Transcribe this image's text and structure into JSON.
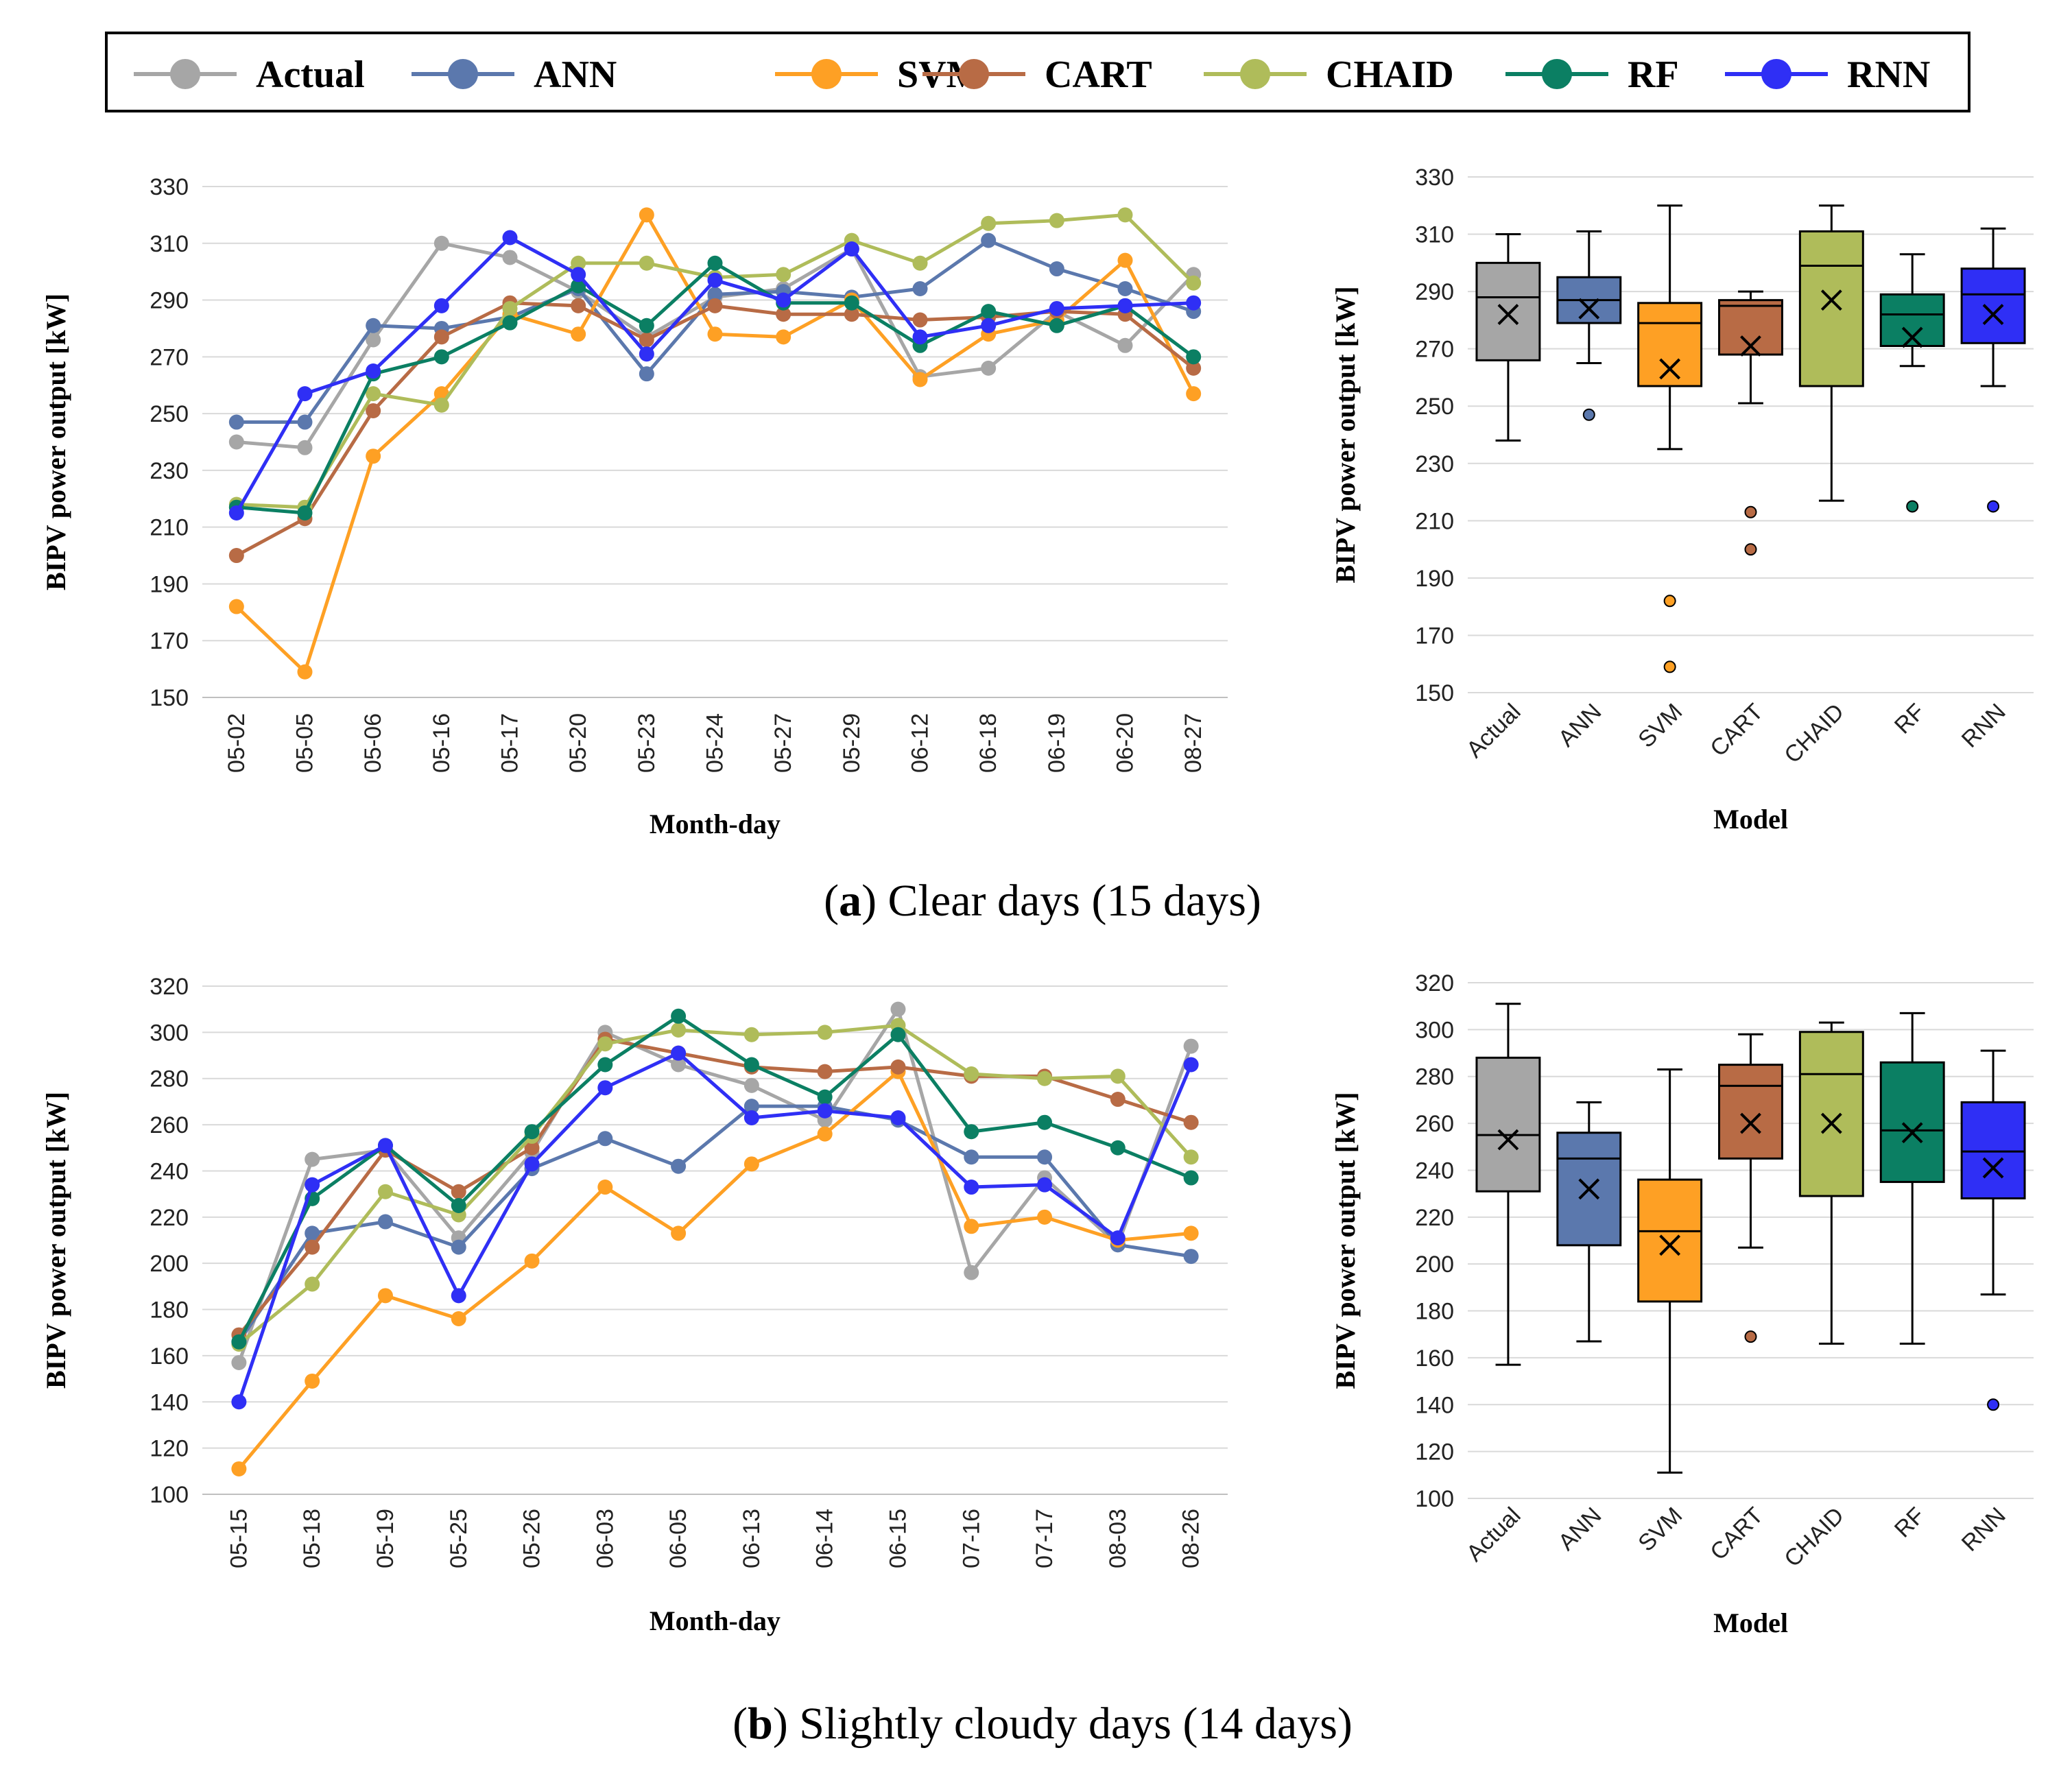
{
  "legend": [
    {
      "name": "Actual",
      "color": "#a6a6a6"
    },
    {
      "name": "ANN",
      "color": "#5b78ad"
    },
    {
      "name": "SVM",
      "color": "#fea024"
    },
    {
      "name": "CART",
      "color": "#b86b45"
    },
    {
      "name": "CHAID",
      "color": "#afbc5a"
    },
    {
      "name": "RF",
      "color": "#0b7f63"
    },
    {
      "name": "RNN",
      "color": "#2f2ff5"
    }
  ],
  "captions": {
    "a": {
      "label": "a",
      "pre": "(",
      "post": ") Clear days (15 days)"
    },
    "b": {
      "label": "b",
      "pre": "(",
      "post": ") Slightly cloudy days (14 days)"
    }
  },
  "chart_data": [
    {
      "id": "a-line",
      "type": "line",
      "xlabel": "Month-day",
      "ylabel": "BIPV power output [kW]",
      "ylim": [
        150,
        330
      ],
      "yticks": [
        150,
        170,
        190,
        210,
        230,
        250,
        270,
        290,
        310,
        330
      ],
      "categories": [
        "05-02",
        "05-05",
        "05-06",
        "05-16",
        "05-17",
        "05-20",
        "05-23",
        "05-24",
        "05-27",
        "05-29",
        "06-12",
        "06-18",
        "06-19",
        "06-20",
        "08-27"
      ],
      "series": [
        {
          "name": "Actual",
          "values": [
            240,
            238,
            276,
            310,
            305,
            293,
            277,
            291,
            294,
            308,
            263,
            266,
            286,
            274,
            299
          ]
        },
        {
          "name": "ANN",
          "values": [
            247,
            247,
            281,
            280,
            284,
            294,
            264,
            292,
            293,
            291,
            294,
            311,
            301,
            294,
            286
          ]
        },
        {
          "name": "SVM",
          "values": [
            182,
            159,
            235,
            257,
            285,
            278,
            320,
            278,
            277,
            290,
            262,
            278,
            283,
            304,
            257
          ]
        },
        {
          "name": "CART",
          "values": [
            200,
            213,
            251,
            277,
            289,
            288,
            276,
            288,
            285,
            285,
            283,
            284,
            286,
            285,
            266
          ]
        },
        {
          "name": "CHAID",
          "values": [
            218,
            217,
            257,
            253,
            287,
            303,
            303,
            298,
            299,
            311,
            303,
            317,
            318,
            320,
            296
          ]
        },
        {
          "name": "RF",
          "values": [
            217,
            215,
            264,
            270,
            282,
            295,
            281,
            303,
            289,
            289,
            274,
            286,
            281,
            288,
            270
          ]
        },
        {
          "name": "RNN",
          "values": [
            215,
            257,
            265,
            288,
            312,
            299,
            271,
            297,
            290,
            308,
            277,
            281,
            287,
            288,
            289
          ]
        }
      ]
    },
    {
      "id": "a-box",
      "type": "box",
      "xlabel": "Model",
      "ylabel": "BIPV power output [kW]",
      "ylim": [
        150,
        330
      ],
      "yticks": [
        150,
        170,
        190,
        210,
        230,
        250,
        270,
        290,
        310,
        330
      ],
      "boxes": [
        {
          "name": "Actual",
          "color": "#a6a6a6",
          "min": 238,
          "q1": 266,
          "median": 288,
          "q3": 300,
          "max": 310,
          "mean": 282,
          "outliers": []
        },
        {
          "name": "ANN",
          "color": "#5b78ad",
          "min": 265,
          "q1": 279,
          "median": 287,
          "q3": 295,
          "max": 311,
          "mean": 284,
          "outliers": [
            247
          ]
        },
        {
          "name": "SVM",
          "color": "#fea024",
          "min": 235,
          "q1": 257,
          "median": 279,
          "q3": 286,
          "max": 320,
          "mean": 263,
          "outliers": [
            182,
            159
          ]
        },
        {
          "name": "CART",
          "color": "#b86b45",
          "min": 251,
          "q1": 268,
          "median": 285,
          "q3": 287,
          "max": 290,
          "mean": 271,
          "outliers": [
            213,
            200
          ]
        },
        {
          "name": "CHAID",
          "color": "#afbc5a",
          "min": 217,
          "q1": 257,
          "median": 299,
          "q3": 311,
          "max": 320,
          "mean": 287,
          "outliers": []
        },
        {
          "name": "RF",
          "color": "#0b7f63",
          "min": 264,
          "q1": 271,
          "median": 282,
          "q3": 289,
          "max": 303,
          "mean": 274,
          "outliers": [
            215
          ]
        },
        {
          "name": "RNN",
          "color": "#2f2ff5",
          "min": 257,
          "q1": 272,
          "median": 289,
          "q3": 298,
          "max": 312,
          "mean": 282,
          "outliers": [
            215
          ]
        }
      ]
    },
    {
      "id": "b-line",
      "type": "line",
      "xlabel": "Month-day",
      "ylabel": "BIPV power output [kW]",
      "ylim": [
        100,
        320
      ],
      "yticks": [
        100,
        120,
        140,
        160,
        180,
        200,
        220,
        240,
        260,
        280,
        300,
        320
      ],
      "categories": [
        "05-15",
        "05-18",
        "05-19",
        "05-25",
        "05-26",
        "06-03",
        "06-05",
        "06-13",
        "06-14",
        "06-15",
        "07-16",
        "07-17",
        "08-03",
        "08-26"
      ],
      "series": [
        {
          "name": "Actual",
          "values": [
            157,
            245,
            249,
            211,
            248,
            300,
            286,
            277,
            262,
            310,
            196,
            237,
            208,
            294
          ]
        },
        {
          "name": "ANN",
          "values": [
            166,
            213,
            218,
            207,
            241,
            254,
            242,
            268,
            268,
            262,
            246,
            246,
            208,
            203
          ]
        },
        {
          "name": "SVM",
          "values": [
            111,
            149,
            186,
            176,
            201,
            233,
            213,
            243,
            256,
            283,
            216,
            220,
            210,
            213
          ]
        },
        {
          "name": "CART",
          "values": [
            169,
            207,
            249,
            231,
            250,
            297,
            291,
            285,
            283,
            285,
            281,
            281,
            271,
            261
          ]
        },
        {
          "name": "CHAID",
          "values": [
            165,
            191,
            231,
            221,
            255,
            295,
            301,
            299,
            300,
            303,
            282,
            280,
            281,
            246
          ]
        },
        {
          "name": "RF",
          "values": [
            166,
            228,
            251,
            225,
            257,
            286,
            307,
            286,
            272,
            299,
            257,
            261,
            250,
            237
          ]
        },
        {
          "name": "RNN",
          "values": [
            140,
            234,
            251,
            186,
            243,
            276,
            291,
            263,
            266,
            263,
            233,
            234,
            211,
            286
          ]
        }
      ]
    },
    {
      "id": "b-box",
      "type": "box",
      "xlabel": "Model",
      "ylabel": "BIPV power output [kW]",
      "ylim": [
        100,
        320
      ],
      "yticks": [
        100,
        120,
        140,
        160,
        180,
        200,
        220,
        240,
        260,
        280,
        300,
        320
      ],
      "boxes": [
        {
          "name": "Actual",
          "color": "#a6a6a6",
          "min": 157,
          "q1": 231,
          "median": 255,
          "q3": 288,
          "max": 311,
          "mean": 253,
          "outliers": []
        },
        {
          "name": "ANN",
          "color": "#5b78ad",
          "min": 167,
          "q1": 208,
          "median": 245,
          "q3": 256,
          "max": 269,
          "mean": 232,
          "outliers": []
        },
        {
          "name": "SVM",
          "color": "#fea024",
          "min": 111,
          "q1": 184,
          "median": 214,
          "q3": 236,
          "max": 283,
          "mean": 208,
          "outliers": []
        },
        {
          "name": "CART",
          "color": "#b86b45",
          "min": 207,
          "q1": 245,
          "median": 276,
          "q3": 285,
          "max": 298,
          "mean": 260,
          "outliers": [
            169
          ]
        },
        {
          "name": "CHAID",
          "color": "#afbc5a",
          "min": 166,
          "q1": 229,
          "median": 281,
          "q3": 299,
          "max": 303,
          "mean": 260,
          "outliers": []
        },
        {
          "name": "RF",
          "color": "#0b7f63",
          "min": 166,
          "q1": 235,
          "median": 257,
          "q3": 286,
          "max": 307,
          "mean": 256,
          "outliers": []
        },
        {
          "name": "RNN",
          "color": "#2f2ff5",
          "min": 187,
          "q1": 228,
          "median": 248,
          "q3": 269,
          "max": 291,
          "mean": 241,
          "outliers": [
            140
          ]
        }
      ]
    }
  ]
}
